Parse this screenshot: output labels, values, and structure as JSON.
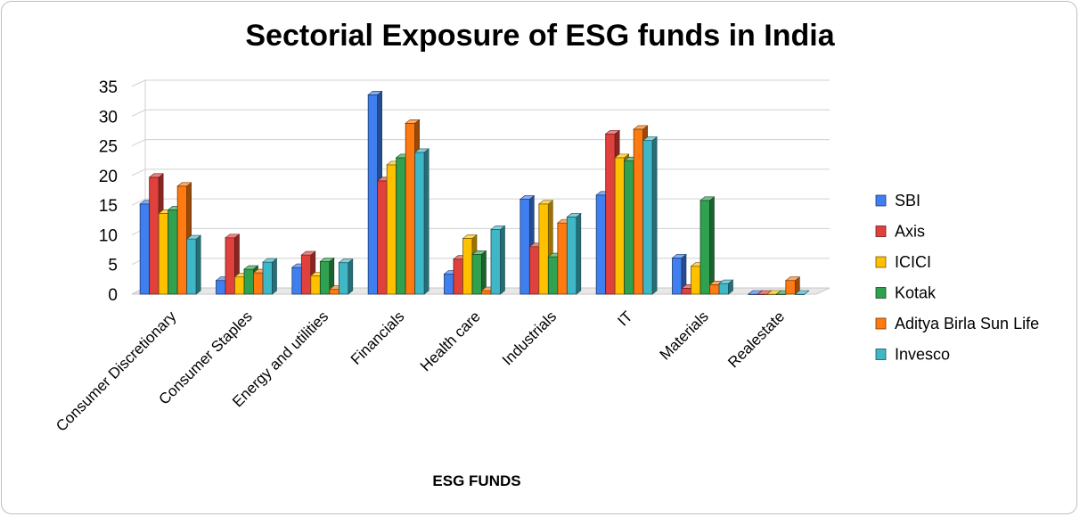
{
  "chart_data": {
    "type": "bar",
    "title": "Sectorial Exposure of  ESG funds in India",
    "xlabel": "ESG FUNDS",
    "ylabel": "",
    "ylim": [
      0,
      35
    ],
    "yticks": [
      0,
      5,
      10,
      15,
      20,
      25,
      30,
      35
    ],
    "grid": true,
    "legend_position": "right",
    "categories": [
      "Consumer Discretionary",
      "Consumer Staples",
      "Energy and utilities",
      "Financials",
      "Health care",
      "Industrials",
      "IT",
      "Materials",
      "Realestate"
    ],
    "series": [
      {
        "name": "SBI",
        "color": "#3f7fef",
        "values": [
          15.2,
          2.3,
          4.5,
          33.6,
          3.4,
          16.0,
          16.7,
          6.1,
          0.0
        ]
      },
      {
        "name": "Axis",
        "color": "#e0413c",
        "values": [
          19.7,
          9.5,
          6.6,
          19.1,
          5.9,
          8.0,
          27.0,
          1.0,
          0.0
        ]
      },
      {
        "name": "ICICI",
        "color": "#ffc000",
        "values": [
          13.6,
          2.9,
          3.1,
          21.8,
          9.4,
          15.2,
          23.0,
          4.7,
          0.0
        ]
      },
      {
        "name": "Kotak",
        "color": "#30a14e",
        "values": [
          14.2,
          4.2,
          5.5,
          23.0,
          6.7,
          6.3,
          22.5,
          15.8,
          0.0
        ]
      },
      {
        "name": "Aditya Birla Sun Life",
        "color": "#ff7a10",
        "values": [
          18.2,
          3.6,
          0.8,
          28.8,
          0.6,
          12.0,
          27.8,
          1.6,
          2.3
        ]
      },
      {
        "name": "Invesco",
        "color": "#3fb7c7",
        "values": [
          9.3,
          5.4,
          5.3,
          23.9,
          10.9,
          13.0,
          25.9,
          1.8,
          0.0
        ]
      }
    ]
  }
}
